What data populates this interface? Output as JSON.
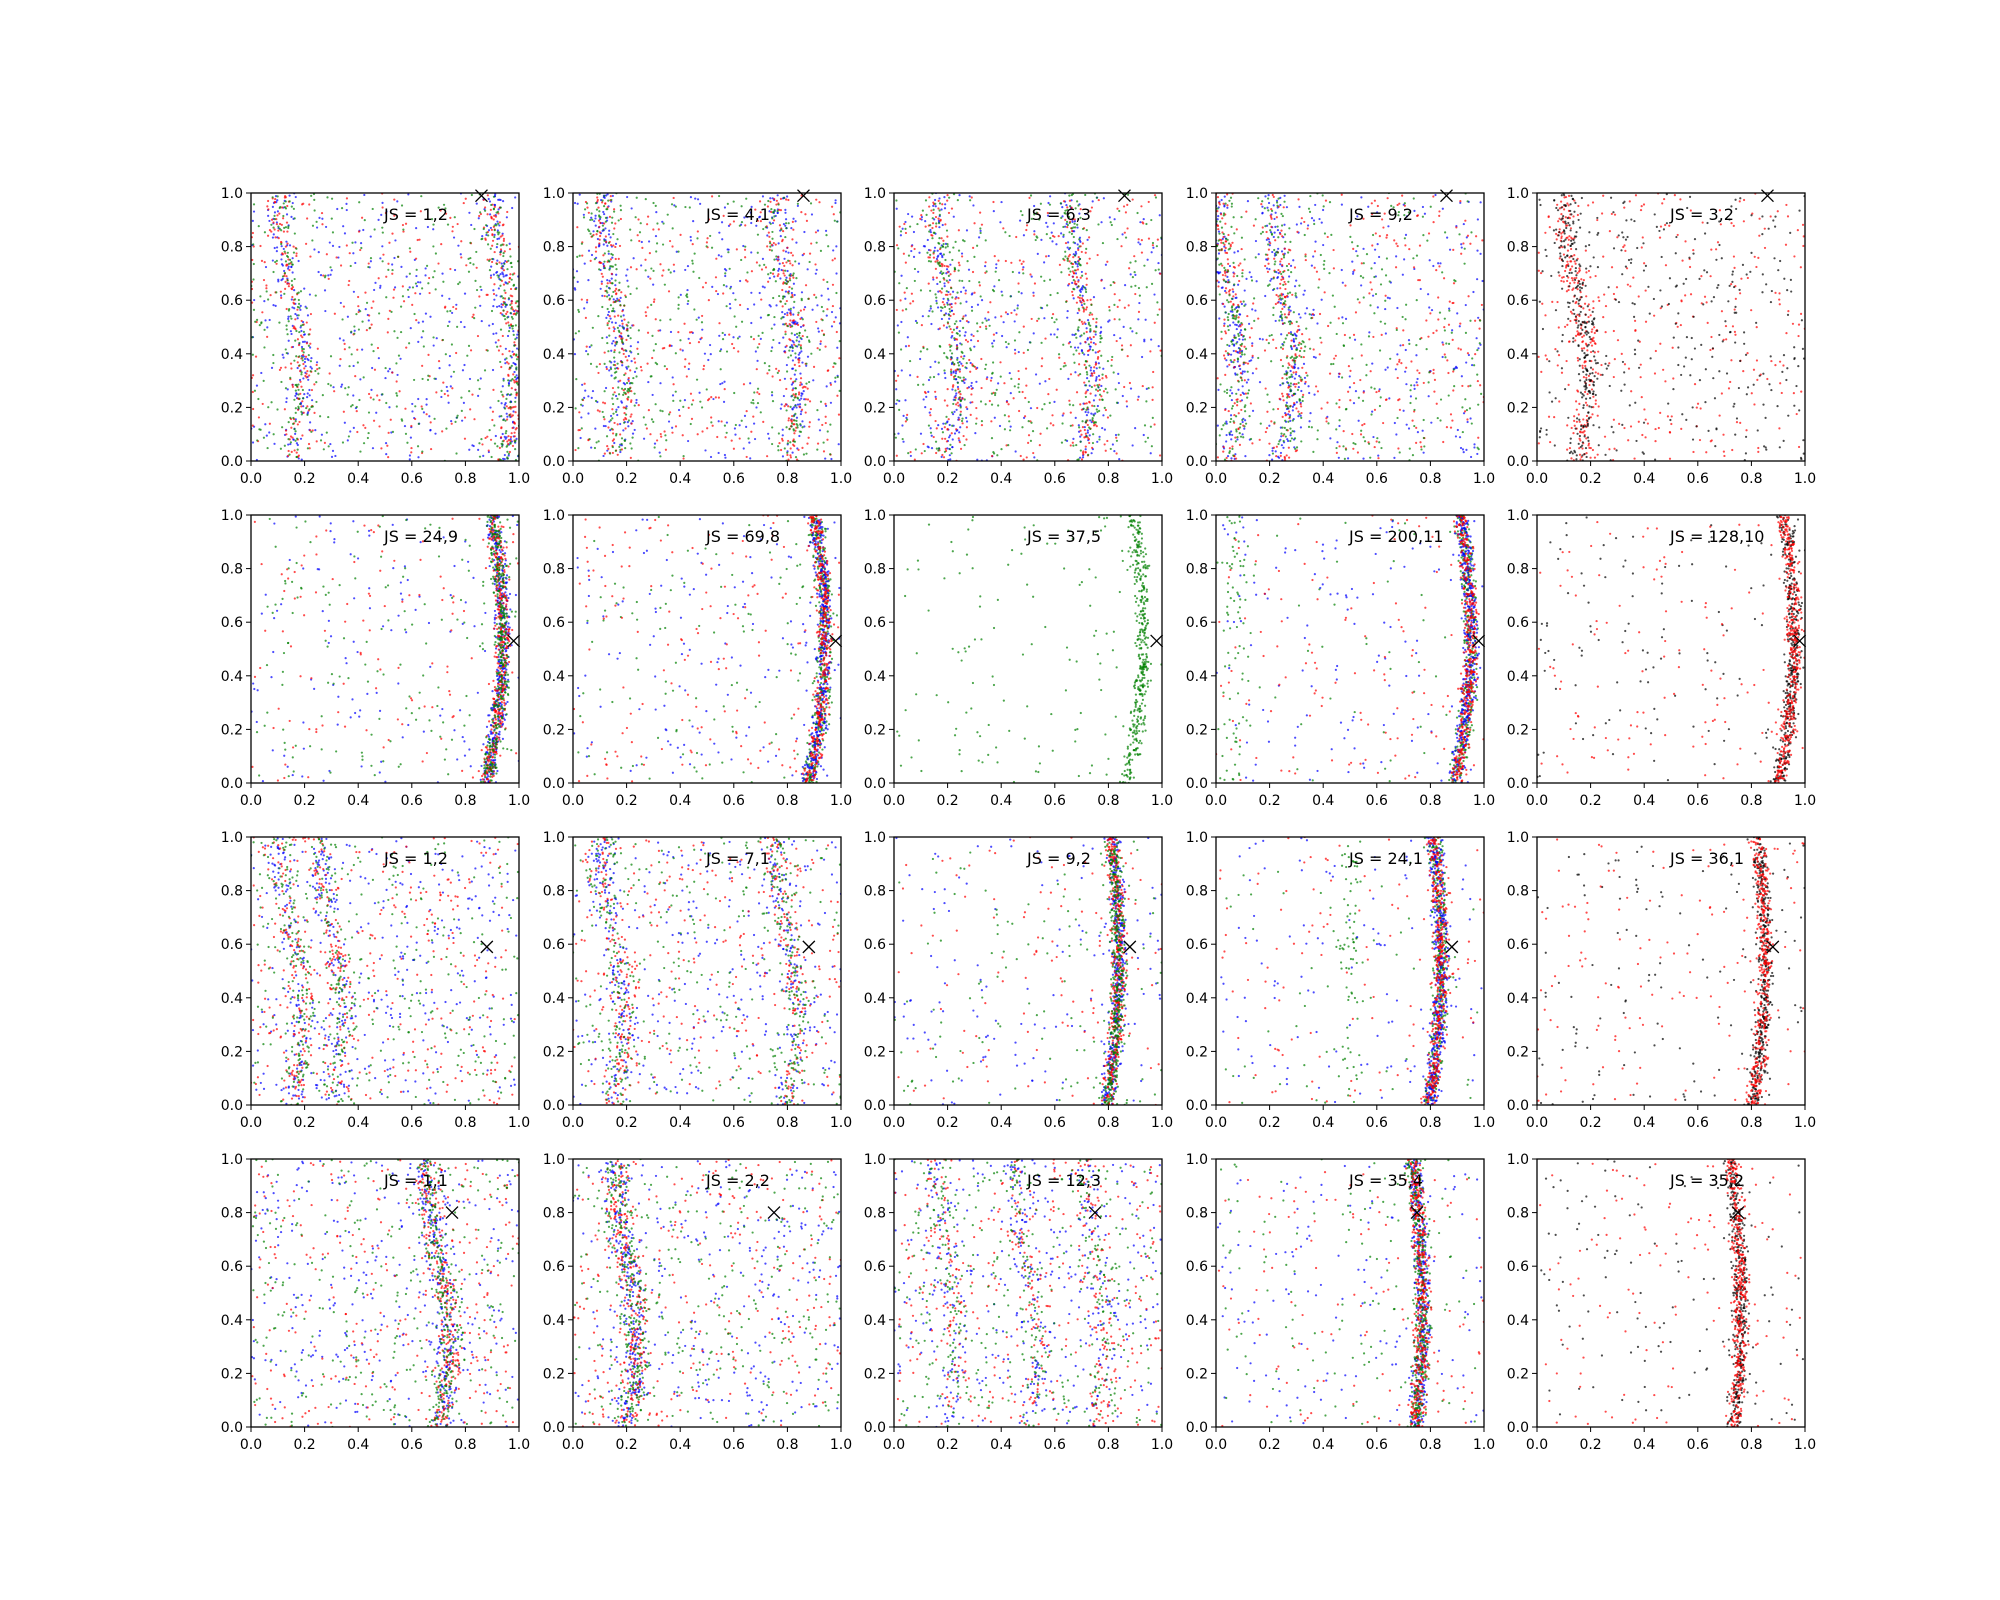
{
  "chart_data": {
    "type": "scatter",
    "grid": false,
    "xlim": [
      0,
      1
    ],
    "ylim": [
      0,
      1
    ],
    "ticks": [
      "0.0",
      "0.2",
      "0.4",
      "0.6",
      "0.8",
      "1.0"
    ],
    "colors": {
      "blue": "#0000ff",
      "red": "#ff0000",
      "green": "#008000",
      "black": "#000000"
    },
    "marker_label": "X",
    "panels": [
      {
        "label": "JS = 1,2",
        "marker": [
          0.86,
          0.99
        ],
        "profile": "uniform-bands",
        "bands": [
          0.15,
          0.95
        ],
        "series": [
          "blue",
          "red",
          "green"
        ]
      },
      {
        "label": "JS = 4,1",
        "marker": [
          0.86,
          0.99
        ],
        "profile": "uniform-bands",
        "bands": [
          0.15,
          0.8
        ],
        "series": [
          "blue",
          "red",
          "green"
        ]
      },
      {
        "label": "JS = 6,3",
        "marker": [
          0.86,
          0.99
        ],
        "profile": "uniform-bands",
        "bands": [
          0.2,
          0.7
        ],
        "series": [
          "blue",
          "red",
          "green"
        ]
      },
      {
        "label": "JS = 9,2",
        "marker": [
          0.86,
          0.99
        ],
        "profile": "uniform-bands",
        "bands": [
          0.05,
          0.25
        ],
        "series": [
          "blue",
          "red",
          "green"
        ]
      },
      {
        "label": "JS = 3,2",
        "marker": [
          0.86,
          0.99
        ],
        "profile": "uniform-bands",
        "bands": [
          0.15
        ],
        "series": [
          "red",
          "black"
        ]
      },
      {
        "label": "JS = 24,9",
        "marker": [
          0.98,
          0.53
        ],
        "profile": "curve",
        "curve": {
          "cx": 0.94,
          "y0": 0.55,
          "a": 0.2
        },
        "series": [
          "blue",
          "red",
          "green"
        ]
      },
      {
        "label": "JS = 69,8",
        "marker": [
          0.98,
          0.53
        ],
        "profile": "curve",
        "curve": {
          "cx": 0.94,
          "y0": 0.55,
          "a": 0.2
        },
        "series": [
          "green",
          "blue",
          "red"
        ]
      },
      {
        "label": "JS = 37,5",
        "marker": [
          0.98,
          0.53
        ],
        "profile": "curve",
        "curve": {
          "cx": 0.93,
          "y0": 0.55,
          "a": 0.2
        },
        "series": [
          "green"
        ]
      },
      {
        "label": "JS = 200,11",
        "marker": [
          0.98,
          0.53
        ],
        "profile": "curve",
        "curve": {
          "cx": 0.95,
          "y0": 0.55,
          "a": 0.2
        },
        "series": [
          "green",
          "blue",
          "red"
        ],
        "extra_band": 0.07
      },
      {
        "label": "JS = 128,10",
        "marker": [
          0.98,
          0.53
        ],
        "profile": "curve",
        "curve": {
          "cx": 0.96,
          "y0": 0.55,
          "a": 0.2
        },
        "series": [
          "black",
          "red"
        ]
      },
      {
        "label": "JS = 1,2",
        "marker": [
          0.88,
          0.59
        ],
        "profile": "uniform-bands",
        "bands": [
          0.15,
          0.3
        ],
        "series": [
          "blue",
          "red",
          "green"
        ]
      },
      {
        "label": "JS = 7,1",
        "marker": [
          0.88,
          0.59
        ],
        "profile": "uniform-bands",
        "bands": [
          0.15,
          0.8
        ],
        "series": [
          "blue",
          "red",
          "green"
        ]
      },
      {
        "label": "JS = 9,2",
        "marker": [
          0.88,
          0.59
        ],
        "profile": "curve",
        "curve": {
          "cx": 0.84,
          "y0": 0.55,
          "a": 0.15
        },
        "series": [
          "blue",
          "red",
          "green"
        ]
      },
      {
        "label": "JS = 24,1",
        "marker": [
          0.88,
          0.59
        ],
        "profile": "curve",
        "curve": {
          "cx": 0.84,
          "y0": 0.55,
          "a": 0.15
        },
        "series": [
          "green",
          "blue",
          "red"
        ],
        "extra_band": 0.5
      },
      {
        "label": "JS = 36,1",
        "marker": [
          0.88,
          0.59
        ],
        "profile": "curve",
        "curve": {
          "cx": 0.85,
          "y0": 0.55,
          "a": 0.15
        },
        "series": [
          "black",
          "red"
        ]
      },
      {
        "label": "JS = 1,1",
        "marker": [
          0.75,
          0.8
        ],
        "profile": "uniform-bands",
        "bands": [
          0.7
        ],
        "series": [
          "blue",
          "red",
          "green"
        ]
      },
      {
        "label": "JS = 2,2",
        "marker": [
          0.75,
          0.8
        ],
        "profile": "uniform-bands",
        "bands": [
          0.2
        ],
        "series": [
          "blue",
          "red",
          "green"
        ]
      },
      {
        "label": "JS = 12,3",
        "marker": [
          0.75,
          0.8
        ],
        "profile": "uniform-bands",
        "bands": [
          0.2,
          0.5,
          0.75
        ],
        "series": [
          "blue",
          "red",
          "green"
        ]
      },
      {
        "label": "JS = 35,4",
        "marker": [
          0.75,
          0.8
        ],
        "profile": "curve",
        "curve": {
          "cx": 0.77,
          "y0": 0.45,
          "a": 0.12
        },
        "series": [
          "blue",
          "green",
          "red"
        ]
      },
      {
        "label": "JS = 35,2",
        "marker": [
          0.75,
          0.8
        ],
        "profile": "curve",
        "curve": {
          "cx": 0.76,
          "y0": 0.45,
          "a": 0.12
        },
        "series": [
          "black",
          "red"
        ]
      }
    ]
  }
}
